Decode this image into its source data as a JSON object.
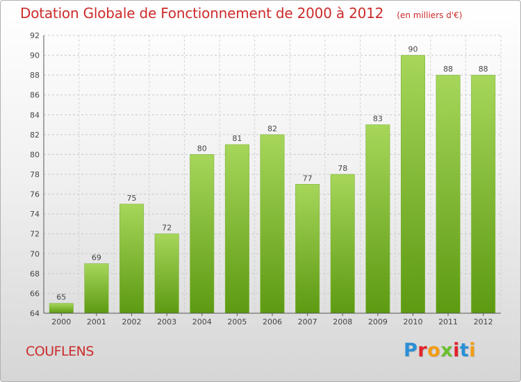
{
  "title": "Dotation Globale de Fonctionnement de 2000 à 2012",
  "subtitle": "(en milliers d'€)",
  "commune": "COUFLENS",
  "logo": {
    "text": "Proxiti",
    "letters": [
      "P",
      "r",
      "o",
      "x",
      "i",
      "t",
      "i"
    ],
    "colors": [
      "#2a8fd6",
      "#e2222a",
      "#f39c12",
      "#6abf2e",
      "#e2222a",
      "#2a8fd6",
      "#f39c12"
    ]
  },
  "colors": {
    "bar_light": "#a6d65a",
    "bar_dark": "#5d9a12",
    "text": "#cc2b2b",
    "axis": "#555555"
  },
  "chart_data": {
    "type": "bar",
    "title": "Dotation Globale de Fonctionnement de 2000 à 2012",
    "subtitle": "(en milliers d'€)",
    "categories": [
      "2000",
      "2001",
      "2002",
      "2003",
      "2004",
      "2005",
      "2006",
      "2007",
      "2008",
      "2009",
      "2010",
      "2011",
      "2012"
    ],
    "values": [
      65,
      69,
      75,
      72,
      80,
      81,
      82,
      77,
      78,
      83,
      90,
      88,
      88
    ],
    "ylim": [
      64,
      92
    ],
    "yticks": [
      64,
      66,
      68,
      70,
      72,
      74,
      76,
      78,
      80,
      82,
      84,
      86,
      88,
      90,
      92
    ],
    "grid": true,
    "xlabel": "",
    "ylabel": ""
  }
}
